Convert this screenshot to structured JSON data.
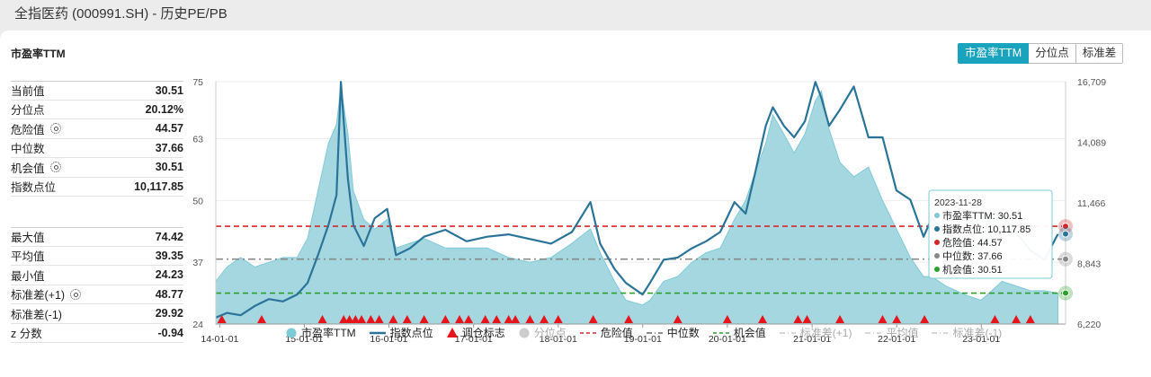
{
  "page": {
    "title": "全指医药 (000991.SH) - 历史PE/PB"
  },
  "chart_title": "市盈率TTM",
  "tabs": [
    {
      "label": "市盈率TTM",
      "active": true
    },
    {
      "label": "分位点",
      "active": false
    },
    {
      "label": "标准差",
      "active": false
    }
  ],
  "stats_top": [
    {
      "label": "当前值",
      "value": "30.51",
      "gear": false
    },
    {
      "label": "分位点",
      "value": "20.12%",
      "gear": false
    },
    {
      "label": "危险值",
      "value": "44.57",
      "gear": true
    },
    {
      "label": "中位数",
      "value": "37.66",
      "gear": false
    },
    {
      "label": "机会值",
      "value": "30.51",
      "gear": true
    },
    {
      "label": "指数点位",
      "value": "10,117.85",
      "gear": false
    }
  ],
  "stats_bottom": [
    {
      "label": "最大值",
      "value": "74.42",
      "gear": false
    },
    {
      "label": "平均值",
      "value": "39.35",
      "gear": false
    },
    {
      "label": "最小值",
      "value": "24.23",
      "gear": false
    },
    {
      "label": "标准差(+1)",
      "value": "48.77",
      "gear": true
    },
    {
      "label": "标准差(-1)",
      "value": "29.92",
      "gear": false
    },
    {
      "label": "z 分数",
      "value": "-0.94",
      "gear": false
    }
  ],
  "tooltip": {
    "date": "2023-11-28",
    "rows": [
      {
        "label": "市盈率TTM: 30.51",
        "color": "#7ecbd8"
      },
      {
        "label": "指数点位: 10,117.85",
        "color": "#2a7499"
      },
      {
        "label": "危险值: 44.57",
        "color": "#d62728"
      },
      {
        "label": "中位数: 37.66",
        "color": "#888888"
      },
      {
        "label": "机会值: 30.51",
        "color": "#2ca02c"
      }
    ]
  },
  "legend": [
    {
      "label": "市盈率TTM",
      "kind": "dot",
      "color": "#7ecbd8",
      "active": true
    },
    {
      "label": "指数点位",
      "kind": "line",
      "color": "#2a7499",
      "active": true
    },
    {
      "label": "调仓标志",
      "kind": "triangle",
      "color": "#e8141c",
      "active": true
    },
    {
      "label": "分位点",
      "kind": "dot",
      "color": "#cccccc",
      "active": false
    },
    {
      "label": "危险值",
      "kind": "dash",
      "color": "#d62728",
      "active": true
    },
    {
      "label": "中位数",
      "kind": "dashdot",
      "color": "#666666",
      "active": true
    },
    {
      "label": "机会值",
      "kind": "dash",
      "color": "#2ca02c",
      "active": true
    },
    {
      "label": "标准差(+1)",
      "kind": "dashdot",
      "color": "#cccccc",
      "active": false
    },
    {
      "label": "平均值",
      "kind": "dashdot",
      "color": "#cccccc",
      "active": false
    },
    {
      "label": "标准差(-1)",
      "kind": "dashdot",
      "color": "#cccccc",
      "active": false
    }
  ],
  "colors": {
    "pe_fill": "#9bd3dd",
    "pe_stroke": "#7ecbd8",
    "index_line": "#2a7499",
    "danger": "#d62728",
    "median": "#888888",
    "chance": "#2ca02c",
    "marker": "#e8141c",
    "accent": "#1aa3bd"
  },
  "chart_data": {
    "type": "area",
    "x_range": [
      "2013-12-15",
      "2023-12-31"
    ],
    "x_ticks": [
      "14-01-01",
      "15-01-01",
      "16-01-01",
      "17-01-01",
      "18-01-01",
      "19-01-01",
      "20-01-01",
      "21-01-01",
      "22-01-01",
      "23-01-01"
    ],
    "y_left": {
      "ticks": [
        "24",
        "37",
        "50",
        "63",
        "75"
      ],
      "ylim": [
        24,
        75
      ]
    },
    "y_right": {
      "ticks": [
        "6,220",
        "8,843",
        "11,466",
        "14,089",
        "16,709"
      ],
      "ylim": [
        6220,
        16709
      ]
    },
    "reference_lines": {
      "danger": 44.57,
      "median": 37.66,
      "chance": 30.51
    },
    "series": [
      {
        "name": "市盈率TTM",
        "axis": "left",
        "dates": [
          "2013-12-15",
          "2014-02-01",
          "2014-04-01",
          "2014-06-01",
          "2014-08-01",
          "2014-10-01",
          "2014-12-01",
          "2015-01-15",
          "2015-03-01",
          "2015-04-15",
          "2015-05-20",
          "2015-06-08",
          "2015-07-08",
          "2015-08-01",
          "2015-09-15",
          "2015-11-01",
          "2015-12-25",
          "2016-02-01",
          "2016-04-01",
          "2016-06-01",
          "2016-09-01",
          "2016-12-01",
          "2017-03-01",
          "2017-06-01",
          "2017-09-01",
          "2017-12-01",
          "2018-03-01",
          "2018-05-20",
          "2018-07-01",
          "2018-09-01",
          "2018-10-20",
          "2018-12-31",
          "2019-02-01",
          "2019-04-01",
          "2019-06-01",
          "2019-08-01",
          "2019-10-01",
          "2019-12-01",
          "2020-02-01",
          "2020-03-20",
          "2020-05-01",
          "2020-06-15",
          "2020-07-15",
          "2020-09-01",
          "2020-10-15",
          "2020-12-01",
          "2021-01-15",
          "2021-02-10",
          "2021-03-15",
          "2021-05-01",
          "2021-06-30",
          "2021-09-01",
          "2021-11-01",
          "2021-12-31",
          "2022-03-01",
          "2022-04-27",
          "2022-06-01",
          "2022-08-01",
          "2022-10-31",
          "2022-12-31",
          "2023-02-15",
          "2023-04-01",
          "2023-06-01",
          "2023-08-01",
          "2023-10-01",
          "2023-11-28"
        ],
        "values": [
          33,
          36,
          38,
          36,
          37,
          38,
          38,
          42,
          52,
          62,
          66,
          74,
          64,
          52,
          46,
          44,
          46,
          40,
          41,
          42,
          40,
          40,
          40,
          38,
          37,
          38,
          41,
          44,
          39,
          33,
          29,
          28,
          29,
          33,
          34,
          37,
          39,
          40,
          46,
          50,
          56,
          62,
          68,
          64,
          60,
          64,
          71,
          73,
          65,
          58,
          55,
          57,
          50,
          44,
          38,
          34,
          34,
          32,
          30,
          29,
          31,
          33,
          32,
          31,
          31,
          30.51
        ]
      },
      {
        "name": "指数点位",
        "axis": "right",
        "dates": [
          "2013-12-15",
          "2014-02-01",
          "2014-04-01",
          "2014-06-01",
          "2014-08-01",
          "2014-10-01",
          "2014-12-01",
          "2015-01-15",
          "2015-03-01",
          "2015-04-15",
          "2015-05-20",
          "2015-06-08",
          "2015-07-08",
          "2015-08-01",
          "2015-09-15",
          "2015-11-01",
          "2015-12-25",
          "2016-02-01",
          "2016-04-01",
          "2016-06-01",
          "2016-09-01",
          "2016-12-01",
          "2017-03-01",
          "2017-06-01",
          "2017-09-01",
          "2017-12-01",
          "2018-03-01",
          "2018-05-20",
          "2018-07-01",
          "2018-09-01",
          "2018-10-20",
          "2018-12-31",
          "2019-02-01",
          "2019-04-01",
          "2019-06-01",
          "2019-08-01",
          "2019-10-01",
          "2019-12-01",
          "2020-02-01",
          "2020-03-20",
          "2020-05-01",
          "2020-06-15",
          "2020-07-15",
          "2020-09-01",
          "2020-10-15",
          "2020-12-01",
          "2021-01-15",
          "2021-02-10",
          "2021-03-15",
          "2021-05-01",
          "2021-06-30",
          "2021-09-01",
          "2021-11-01",
          "2021-12-31",
          "2022-03-01",
          "2022-04-27",
          "2022-06-01",
          "2022-08-01",
          "2022-10-31",
          "2022-12-31",
          "2023-02-15",
          "2023-04-01",
          "2023-06-01",
          "2023-08-01",
          "2023-10-01",
          "2023-11-28"
        ],
        "values": [
          6500,
          6700,
          6600,
          7000,
          7300,
          7200,
          7500,
          8000,
          9200,
          10500,
          11800,
          16700,
          12500,
          10500,
          9600,
          10800,
          11200,
          9200,
          9500,
          10000,
          10300,
          9800,
          10000,
          10100,
          9900,
          9700,
          10200,
          11500,
          9700,
          8600,
          8000,
          7500,
          8000,
          9000,
          9100,
          9500,
          9800,
          10200,
          11500,
          11000,
          12800,
          14800,
          15600,
          14800,
          14300,
          15000,
          16700,
          16000,
          14800,
          15500,
          16500,
          14300,
          14300,
          12000,
          11600,
          10000,
          10800,
          10200,
          9300,
          9800,
          11000,
          10900,
          10200,
          9400,
          9000,
          10117.85
        ]
      }
    ],
    "rebalance_markers": [
      "2014-01-10",
      "2014-07-01",
      "2015-03-20",
      "2015-06-20",
      "2015-07-15",
      "2015-08-10",
      "2015-09-05",
      "2015-10-15",
      "2015-11-20",
      "2016-01-20",
      "2016-03-20",
      "2016-06-01",
      "2016-09-01",
      "2016-11-01",
      "2016-12-10",
      "2017-02-20",
      "2017-04-10",
      "2017-06-01",
      "2017-06-30",
      "2017-09-01",
      "2017-11-01",
      "2018-01-01",
      "2018-06-01",
      "2018-11-01",
      "2019-06-01",
      "2020-01-01",
      "2020-06-01",
      "2020-11-01",
      "2020-12-10",
      "2021-05-01",
      "2021-11-01",
      "2022-01-01",
      "2022-05-01",
      "2023-03-01",
      "2023-06-01",
      "2023-08-01"
    ]
  }
}
